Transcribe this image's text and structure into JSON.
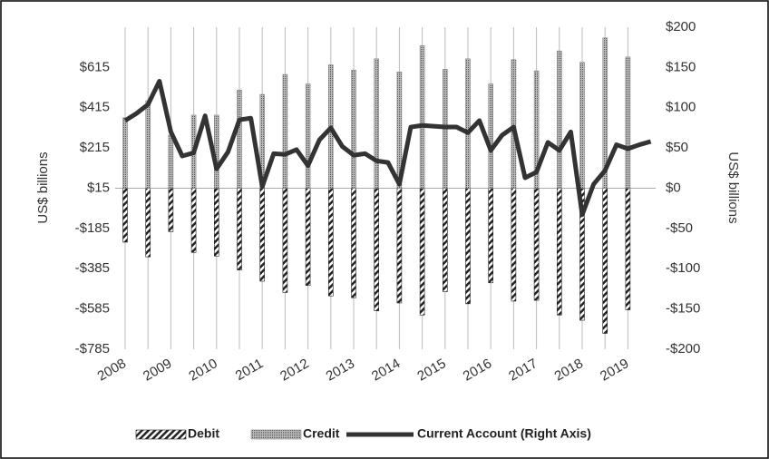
{
  "chart_data": {
    "type": "bar_line",
    "y_label": "US$ billions",
    "y2_label": "US$ billions",
    "categories": [
      "2008",
      null,
      null,
      null,
      "2009",
      null,
      null,
      null,
      "2010",
      null,
      null,
      null,
      "2011",
      null,
      null,
      null,
      "2012",
      null,
      null,
      null,
      "2013",
      null,
      null,
      null,
      "2014",
      null,
      null,
      null,
      "2015",
      null,
      null,
      null,
      "2016",
      null,
      null,
      null,
      "2017",
      null,
      null,
      null,
      "2018",
      null,
      null,
      null,
      "2019",
      null,
      null
    ],
    "series": [
      {
        "name": "Debit",
        "color": "#222222",
        "pattern": "hatch",
        "values": [
          -253,
          null,
          -326,
          null,
          -201,
          null,
          -304,
          null,
          -322,
          null,
          -391,
          null,
          -447,
          null,
          -503,
          null,
          -468,
          null,
          -520,
          null,
          -529,
          null,
          -594,
          null,
          -555,
          null,
          -615,
          null,
          -499,
          null,
          -559,
          null,
          -455,
          null,
          -546,
          null,
          -542,
          null,
          -615,
          null,
          -641,
          null,
          -706,
          null,
          -589,
          null,
          null
        ]
      },
      {
        "name": "Credit",
        "color": "#888888",
        "pattern": "dots",
        "values": [
          365,
          null,
          450,
          null,
          280,
          null,
          378,
          null,
          378,
          null,
          503,
          null,
          481,
          null,
          580,
          null,
          533,
          null,
          628,
          null,
          602,
          null,
          658,
          null,
          593,
          null,
          723,
          null,
          606,
          null,
          658,
          null,
          533,
          null,
          654,
          null,
          598,
          null,
          697,
          null,
          641,
          null,
          762,
          null,
          667,
          null,
          null
        ]
      },
      {
        "name": "Current Account (Right Axis)",
        "color": "#333333",
        "axis": "y2",
        "values": [
          84,
          93,
          104,
          133,
          70,
          40,
          44,
          90,
          24,
          45,
          85,
          87,
          2,
          43,
          42,
          48,
          28,
          60,
          75,
          52,
          41,
          43,
          34,
          32,
          5,
          76,
          78,
          77,
          76,
          76,
          69,
          84,
          47,
          66,
          76,
          13,
          20,
          57,
          47,
          70,
          -33,
          5,
          22,
          54,
          49,
          54,
          58
        ]
      }
    ],
    "axis_crossing": 15,
    "ylim": [
      -785,
      815
    ],
    "yticks": [
      {
        "value": -785,
        "label": "-$785"
      },
      {
        "value": -585,
        "label": "-$585"
      },
      {
        "value": -385,
        "label": "-$385"
      },
      {
        "value": -185,
        "label": "-$185"
      },
      {
        "value": 15,
        "label": "$15"
      },
      {
        "value": 215,
        "label": "$215"
      },
      {
        "value": 415,
        "label": "$415"
      },
      {
        "value": 615,
        "label": "$615"
      }
    ],
    "y2lim": [
      -200,
      200
    ],
    "y2ticks": [
      {
        "value": -200,
        "label": "-$200"
      },
      {
        "value": -150,
        "label": "-$150"
      },
      {
        "value": -100,
        "label": "-$100"
      },
      {
        "value": -50,
        "label": "-$50"
      },
      {
        "value": 0,
        "label": "$0"
      },
      {
        "value": 50,
        "label": "$50"
      },
      {
        "value": 100,
        "label": "$100"
      },
      {
        "value": 150,
        "label": "$150"
      },
      {
        "value": 200,
        "label": "$200"
      }
    ],
    "legend": "bottom"
  }
}
